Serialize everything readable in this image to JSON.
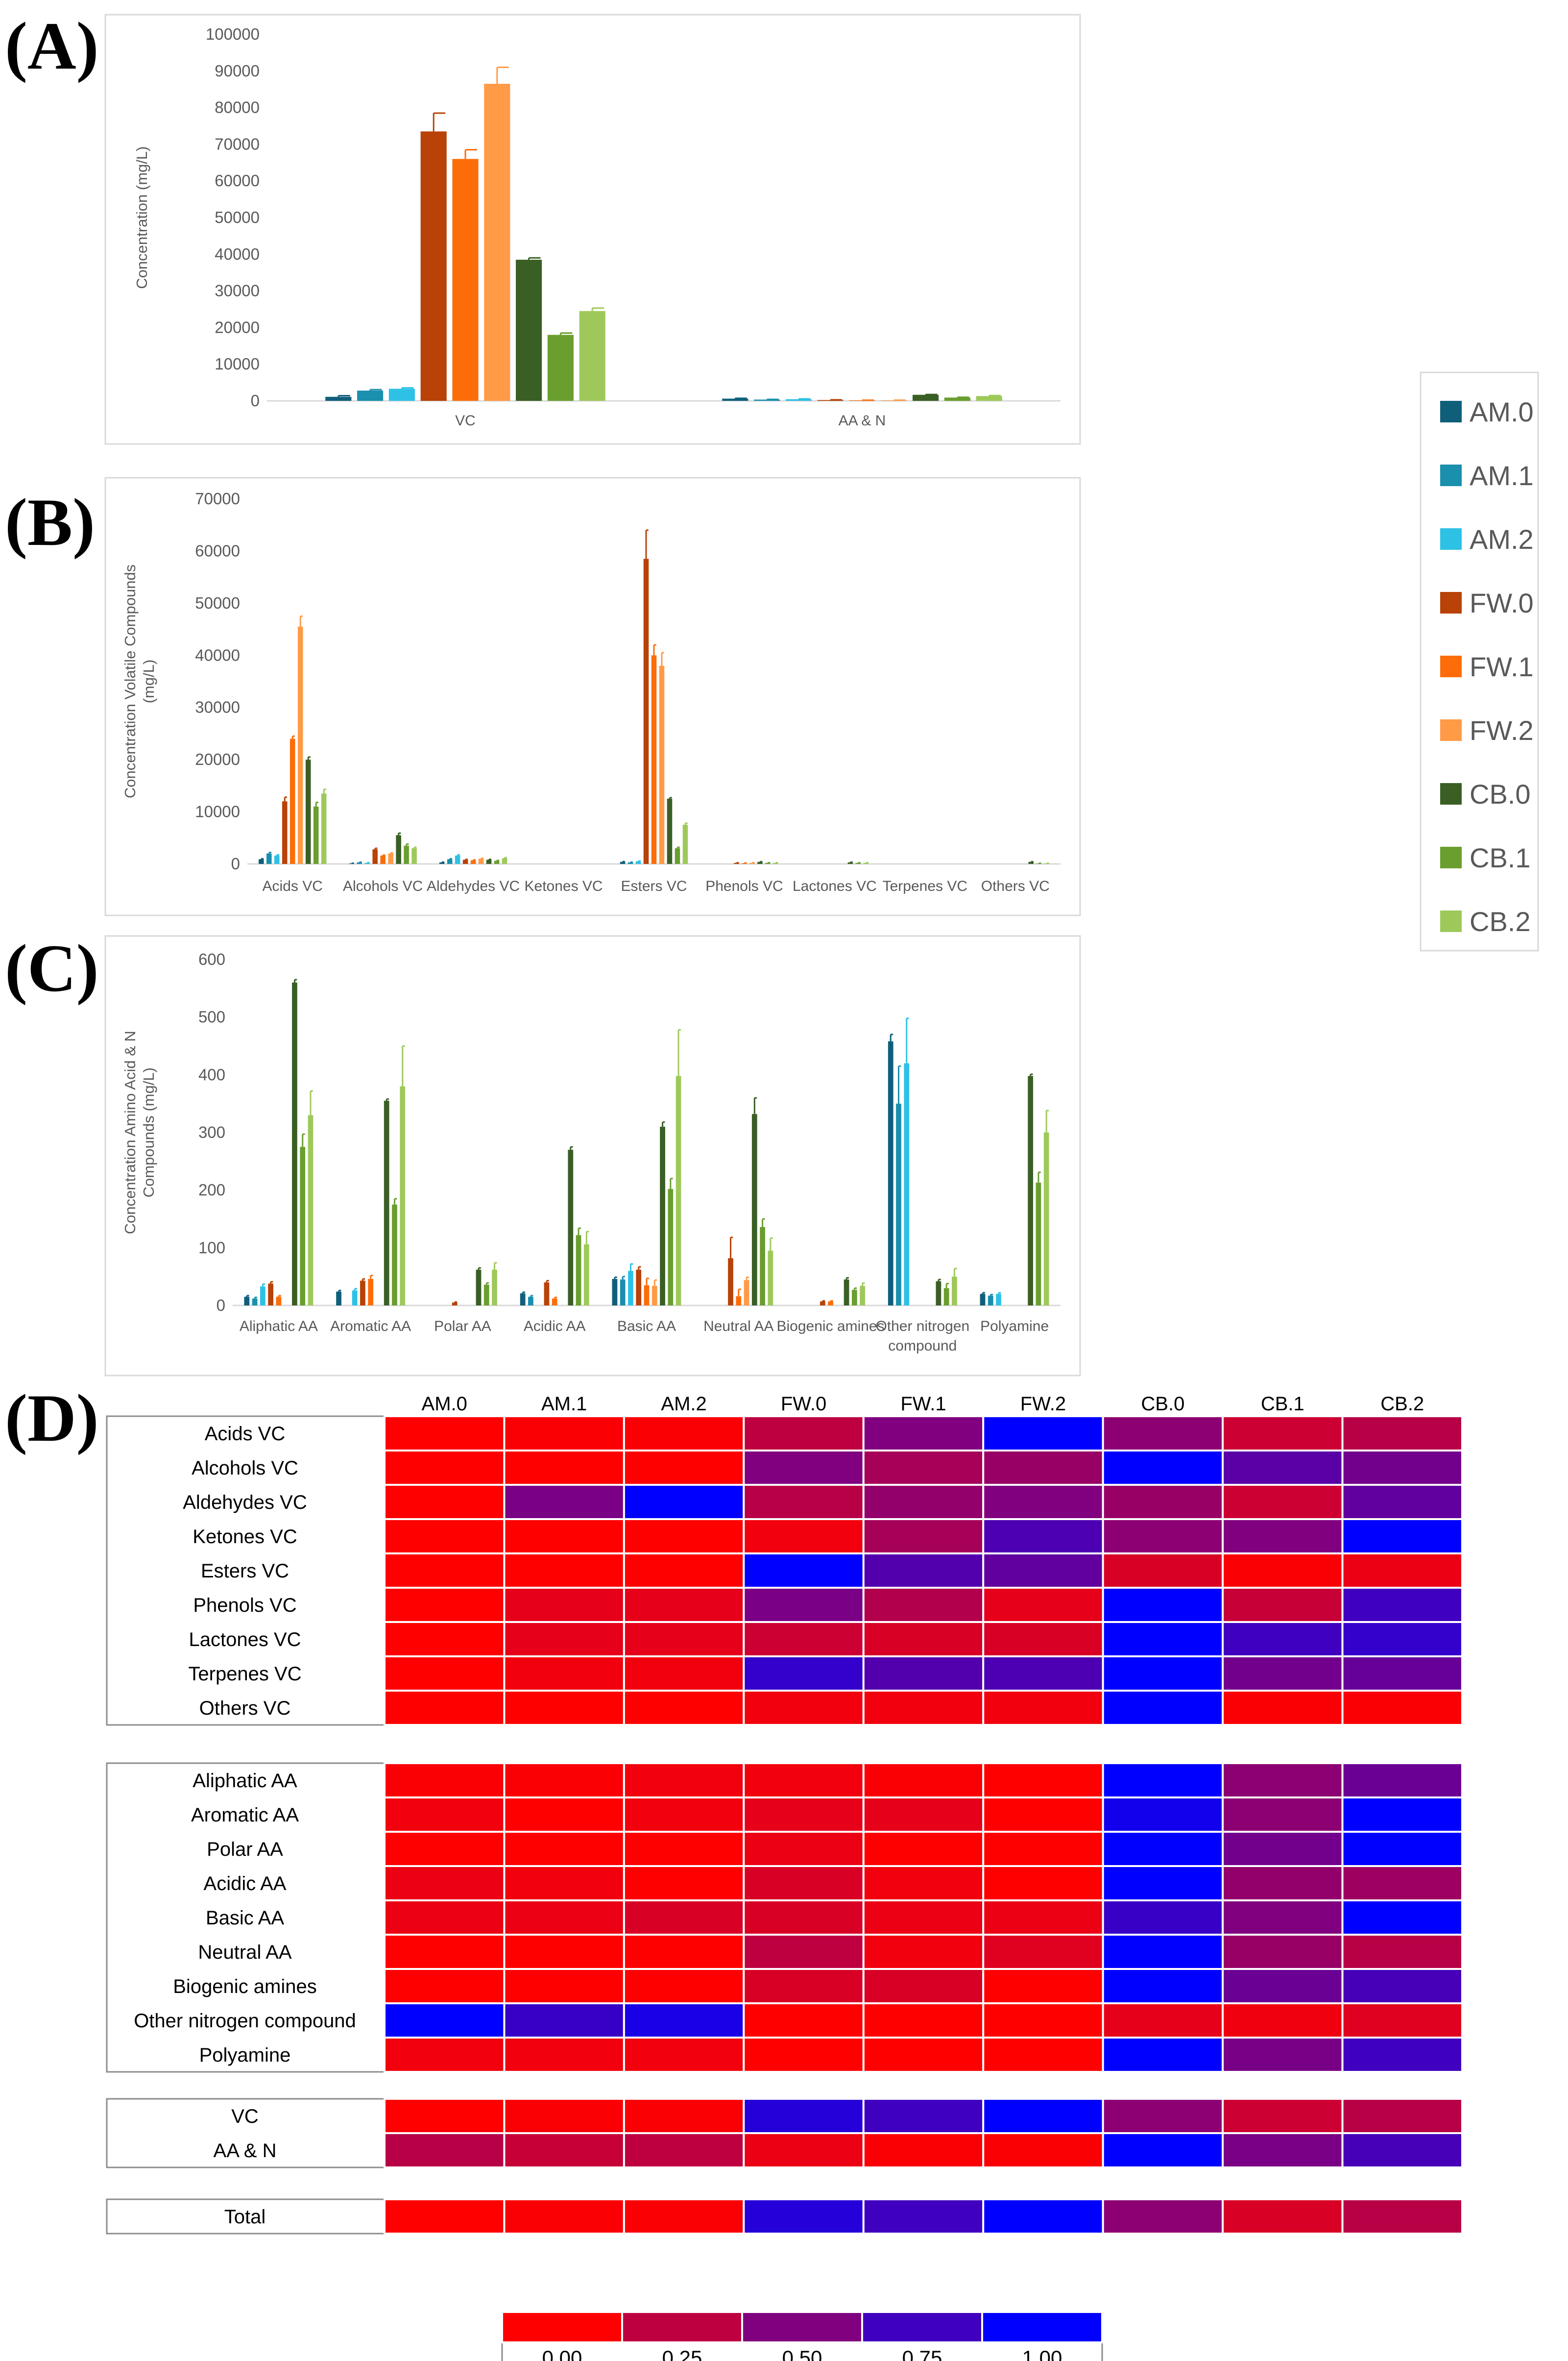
{
  "legend": {
    "items": [
      {
        "label": "AM.0",
        "color": "#0f5f7a"
      },
      {
        "label": "AM.1",
        "color": "#1a8fae"
      },
      {
        "label": "AM.2",
        "color": "#2ec1e6"
      },
      {
        "label": "FW.0",
        "color": "#b84208"
      },
      {
        "label": "FW.1",
        "color": "#fc6d09"
      },
      {
        "label": "FW.2",
        "color": "#ff9a47"
      },
      {
        "label": "CB.0",
        "color": "#3a5f25"
      },
      {
        "label": "CB.1",
        "color": "#6a9e2e"
      },
      {
        "label": "CB.2",
        "color": "#9ec95a"
      }
    ]
  },
  "chart_data": [
    {
      "panel": "(A)",
      "type": "bar",
      "ylabel": "Concentration (mg/L)",
      "ylim": [
        0,
        100000
      ],
      "yticks": [
        "0",
        "10000",
        "20000",
        "30000",
        "40000",
        "50000",
        "60000",
        "70000",
        "80000",
        "90000",
        "100000"
      ],
      "categories": [
        "VC",
        "AA & N"
      ],
      "series": [
        {
          "name": "AM.0",
          "values": [
            1100,
            600
          ],
          "errors": [
            300,
            100
          ]
        },
        {
          "name": "AM.1",
          "values": [
            2800,
            350
          ],
          "errors": [
            250,
            50
          ]
        },
        {
          "name": "AM.2",
          "values": [
            3300,
            450
          ],
          "errors": [
            250,
            80
          ]
        },
        {
          "name": "FW.0",
          "values": [
            73500,
            220
          ],
          "errors": [
            5000,
            60
          ]
        },
        {
          "name": "FW.1",
          "values": [
            66000,
            150
          ],
          "errors": [
            2500,
            40
          ]
        },
        {
          "name": "FW.2",
          "values": [
            86500,
            150
          ],
          "errors": [
            4500,
            40
          ]
        },
        {
          "name": "CB.0",
          "values": [
            38500,
            1650
          ],
          "errors": [
            500,
            80
          ]
        },
        {
          "name": "CB.1",
          "values": [
            18000,
            900
          ],
          "errors": [
            500,
            80
          ]
        },
        {
          "name": "CB.2",
          "values": [
            24500,
            1300
          ],
          "errors": [
            800,
            150
          ]
        }
      ]
    },
    {
      "panel": "(B)",
      "type": "bar",
      "ylabel": "Concentration Volatile Compounds (mg/L)",
      "ylim": [
        0,
        70000
      ],
      "yticks": [
        "0",
        "10000",
        "20000",
        "30000",
        "40000",
        "50000",
        "60000",
        "70000"
      ],
      "categories": [
        "Acids VC",
        "Alcohols VC",
        "Aldehydes VC",
        "Ketones VC",
        "Esters VC",
        "Phenols VC",
        "Lactones VC",
        "Terpenes VC",
        "Others VC"
      ],
      "series": [
        {
          "name": "AM.0",
          "values": [
            900,
            100,
            300,
            0,
            400,
            0,
            0,
            0,
            0
          ],
          "errors": [
            100,
            30,
            50,
            0,
            50,
            0,
            0,
            0,
            0
          ]
        },
        {
          "name": "AM.1",
          "values": [
            2000,
            300,
            900,
            0,
            300,
            0,
            0,
            0,
            0
          ],
          "errors": [
            200,
            50,
            100,
            0,
            50,
            0,
            0,
            0,
            0
          ]
        },
        {
          "name": "AM.2",
          "values": [
            1600,
            200,
            1600,
            0,
            500,
            0,
            0,
            0,
            0
          ],
          "errors": [
            150,
            40,
            150,
            0,
            60,
            0,
            0,
            0,
            0
          ]
        },
        {
          "name": "FW.0",
          "values": [
            12000,
            2800,
            800,
            0,
            58500,
            200,
            0,
            0,
            0
          ],
          "errors": [
            800,
            200,
            80,
            0,
            5500,
            30,
            0,
            0,
            0
          ]
        },
        {
          "name": "FW.1",
          "values": [
            24000,
            1600,
            700,
            0,
            40000,
            150,
            0,
            0,
            0
          ],
          "errors": [
            500,
            100,
            80,
            0,
            2000,
            30,
            0,
            0,
            0
          ]
        },
        {
          "name": "FW.2",
          "values": [
            45500,
            2000,
            1000,
            0,
            38000,
            200,
            0,
            0,
            0
          ],
          "errors": [
            2000,
            150,
            80,
            0,
            2500,
            30,
            0,
            0,
            0
          ]
        },
        {
          "name": "CB.0",
          "values": [
            20000,
            5500,
            800,
            0,
            12500,
            400,
            300,
            0,
            400
          ],
          "errors": [
            500,
            400,
            80,
            0,
            200,
            40,
            40,
            0,
            40
          ]
        },
        {
          "name": "CB.1",
          "values": [
            11000,
            3500,
            600,
            0,
            3000,
            200,
            200,
            0,
            100
          ],
          "errors": [
            800,
            300,
            80,
            0,
            200,
            30,
            30,
            0,
            20
          ]
        },
        {
          "name": "CB.2",
          "values": [
            13500,
            3000,
            1100,
            0,
            7500,
            200,
            200,
            0,
            100
          ],
          "errors": [
            800,
            200,
            100,
            0,
            300,
            30,
            30,
            0,
            20
          ]
        }
      ]
    },
    {
      "panel": "(C)",
      "type": "bar",
      "ylabel": "Concentration Amino Acid & N Compounds (mg/L)",
      "ylim": [
        0,
        600
      ],
      "yticks": [
        "0",
        "100",
        "200",
        "300",
        "400",
        "500",
        "600"
      ],
      "categories": [
        "Aliphatic AA",
        "Aromatic AA",
        "Polar AA",
        "Acidic AA",
        "Basic AA",
        "Neutral AA",
        "Biogenic amines",
        "Other nitrogen compound",
        "Polyamine"
      ],
      "series": [
        {
          "name": "AM.0",
          "values": [
            15,
            24,
            0,
            21,
            46,
            0,
            0,
            458,
            20
          ],
          "errors": [
            2,
            2,
            0,
            2,
            3,
            0,
            0,
            12,
            2
          ]
        },
        {
          "name": "AM.1",
          "values": [
            12,
            0,
            0,
            15,
            45,
            0,
            0,
            350,
            17
          ],
          "errors": [
            2,
            0,
            0,
            2,
            5,
            0,
            0,
            65,
            2
          ]
        },
        {
          "name": "AM.2",
          "values": [
            33,
            26,
            0,
            0,
            60,
            0,
            0,
            420,
            20
          ],
          "errors": [
            4,
            3,
            0,
            0,
            12,
            0,
            0,
            78,
            2
          ]
        },
        {
          "name": "FW.0",
          "values": [
            38,
            43,
            5,
            40,
            62,
            82,
            7,
            0,
            0
          ],
          "errors": [
            3,
            3,
            1,
            3,
            5,
            36,
            1,
            0,
            0
          ]
        },
        {
          "name": "FW.1",
          "values": [
            15,
            46,
            0,
            12,
            35,
            16,
            7,
            0,
            0
          ],
          "errors": [
            2,
            6,
            0,
            2,
            12,
            12,
            1,
            0,
            0
          ]
        },
        {
          "name": "FW.2",
          "values": [
            0,
            0,
            0,
            0,
            34,
            44,
            0,
            0,
            0
          ],
          "errors": [
            0,
            0,
            0,
            0,
            10,
            5,
            0,
            0,
            0
          ]
        },
        {
          "name": "CB.0",
          "values": [
            560,
            355,
            62,
            270,
            310,
            332,
            45,
            42,
            398
          ],
          "errors": [
            5,
            3,
            3,
            5,
            8,
            28,
            3,
            3,
            3
          ]
        },
        {
          "name": "CB.1",
          "values": [
            275,
            175,
            36,
            122,
            202,
            136,
            27,
            30,
            213
          ],
          "errors": [
            22,
            10,
            3,
            12,
            18,
            14,
            3,
            8,
            18
          ]
        },
        {
          "name": "CB.2",
          "values": [
            330,
            380,
            62,
            106,
            398,
            95,
            34,
            50,
            300
          ],
          "errors": [
            42,
            70,
            12,
            22,
            80,
            22,
            5,
            14,
            38
          ]
        }
      ]
    },
    {
      "panel": "(D)",
      "type": "heatmap",
      "columns": [
        "AM.0",
        "AM.1",
        "AM.2",
        "FW.0",
        "FW.1",
        "FW.2",
        "CB.0",
        "CB.1",
        "CB.2"
      ],
      "groups": [
        {
          "rows": [
            "Acids VC",
            "Alcohols VC",
            "Aldehydes VC",
            "Ketones VC",
            "Esters VC",
            "Phenols VC",
            "Lactones VC",
            "Terpenes VC",
            "Others VC"
          ],
          "values": [
            [
              0.0,
              0.02,
              0.02,
              0.25,
              0.5,
              1.0,
              0.45,
              0.2,
              0.28
            ],
            [
              0.0,
              0.0,
              0.0,
              0.5,
              0.35,
              0.4,
              1.0,
              0.65,
              0.55
            ],
            [
              0.0,
              0.52,
              1.0,
              0.28,
              0.42,
              0.5,
              0.4,
              0.2,
              0.62
            ],
            [
              0.0,
              0.0,
              0.0,
              0.05,
              0.35,
              0.7,
              0.45,
              0.5,
              1.0
            ],
            [
              0.0,
              0.0,
              0.0,
              1.0,
              0.68,
              0.62,
              0.15,
              0.02,
              0.08
            ],
            [
              0.0,
              0.1,
              0.1,
              0.52,
              0.3,
              0.1,
              1.0,
              0.22,
              0.75
            ],
            [
              0.0,
              0.1,
              0.1,
              0.2,
              0.15,
              0.15,
              1.0,
              0.75,
              0.8
            ],
            [
              0.0,
              0.05,
              0.05,
              0.8,
              0.68,
              0.7,
              1.0,
              0.55,
              0.6
            ],
            [
              0.0,
              0.0,
              0.0,
              0.05,
              0.05,
              0.05,
              1.0,
              0.02,
              0.02
            ]
          ]
        },
        {
          "rows": [
            "Aliphatic AA",
            "Aromatic AA",
            "Polar AA",
            "Acidic AA",
            "Basic AA",
            "Neutral AA",
            "Biogenic amines",
            "Other nitrogen compound",
            "Polyamine"
          ],
          "values": [
            [
              0.02,
              0.02,
              0.05,
              0.05,
              0.02,
              0.0,
              1.0,
              0.45,
              0.58
            ],
            [
              0.05,
              0.0,
              0.05,
              0.1,
              0.1,
              0.0,
              0.93,
              0.45,
              1.0
            ],
            [
              0.0,
              0.0,
              0.0,
              0.08,
              0.0,
              0.0,
              1.0,
              0.55,
              1.0
            ],
            [
              0.08,
              0.05,
              0.0,
              0.15,
              0.05,
              0.0,
              1.0,
              0.42,
              0.38
            ],
            [
              0.08,
              0.08,
              0.15,
              0.15,
              0.08,
              0.08,
              0.78,
              0.5,
              1.0
            ],
            [
              0.0,
              0.0,
              0.0,
              0.25,
              0.05,
              0.12,
              1.0,
              0.4,
              0.28
            ],
            [
              0.0,
              0.0,
              0.0,
              0.15,
              0.15,
              0.0,
              1.0,
              0.58,
              0.72
            ],
            [
              1.0,
              0.78,
              0.9,
              0.0,
              0.0,
              0.0,
              0.1,
              0.06,
              0.12
            ],
            [
              0.05,
              0.05,
              0.05,
              0.0,
              0.0,
              0.0,
              1.0,
              0.53,
              0.75
            ]
          ]
        },
        {
          "rows": [
            "VC",
            "AA & N"
          ],
          "values": [
            [
              0.0,
              0.02,
              0.02,
              0.85,
              0.75,
              1.0,
              0.45,
              0.2,
              0.28
            ],
            [
              0.28,
              0.22,
              0.25,
              0.08,
              0.02,
              0.02,
              1.0,
              0.52,
              0.72
            ]
          ]
        },
        {
          "rows": [
            "Total"
          ],
          "values": [
            [
              0.0,
              0.02,
              0.02,
              0.85,
              0.75,
              1.0,
              0.45,
              0.15,
              0.28
            ]
          ]
        }
      ],
      "color_scale": {
        "low": "#ff0000",
        "high": "#0000ff",
        "labels": [
          "0.00",
          "0.25",
          "0.50",
          "0.75",
          "1.00"
        ],
        "values": [
          0.0,
          0.25,
          0.5,
          0.75,
          1.0
        ]
      }
    }
  ]
}
